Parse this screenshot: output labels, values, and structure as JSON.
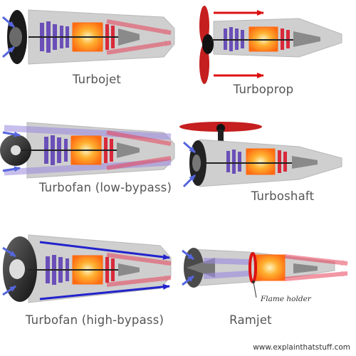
{
  "engines": [
    {
      "id": "turbojet",
      "label": "Turbojet"
    },
    {
      "id": "turboprop",
      "label": "Turboprop"
    },
    {
      "id": "turbofan-low",
      "label": "Turbofan (low-bypass)"
    },
    {
      "id": "turboshaft",
      "label": "Turboshaft"
    },
    {
      "id": "turbofan-high",
      "label": "Turbofan (high-bypass)"
    },
    {
      "id": "ramjet",
      "label": "Ramjet"
    }
  ],
  "annotations": {
    "flame_holder": "Flame holder"
  },
  "credit": "www.explainthatstuff.com",
  "colors": {
    "body": "#cfcfcf",
    "compressor": "#6a4fb8",
    "combustion": "#ff8a1e",
    "turbine": "#d92a3a",
    "exhaust": "#f07a86",
    "intake_arrow": "#5566dd",
    "bypass_arrow": "#2222cc",
    "prop_arrow": "#dd1111",
    "rotor": "#c51f1f",
    "nose": "#555555"
  }
}
